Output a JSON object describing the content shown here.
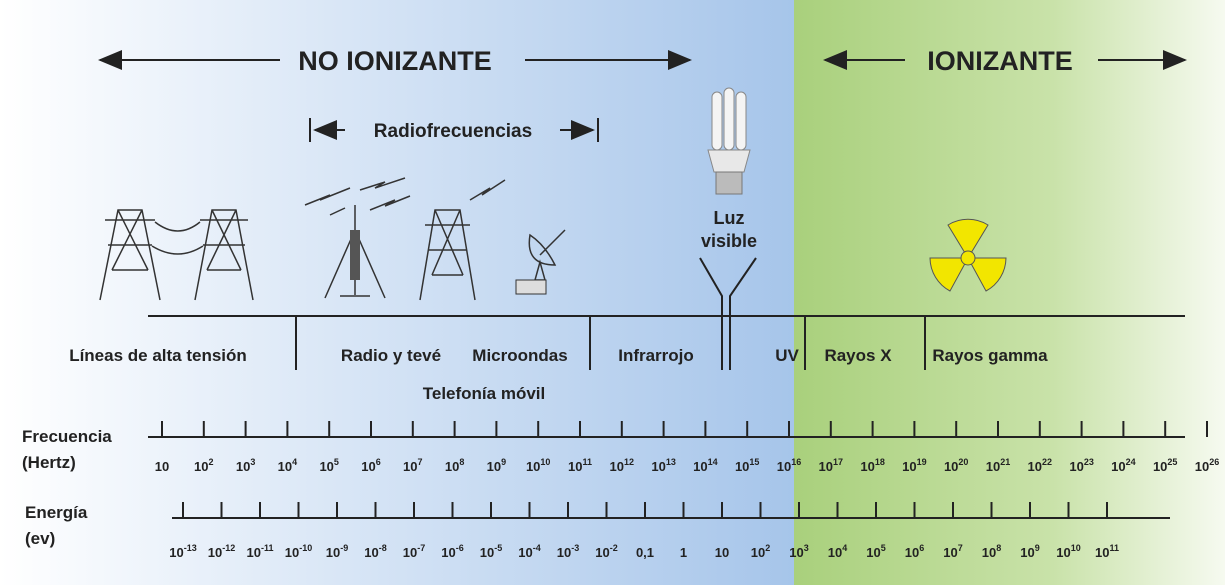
{
  "header": {
    "left": "NO IONIZANTE",
    "right": "IONIZANTE"
  },
  "radiofrequency": "Radiofrecuencias",
  "visible_light": [
    "Luz",
    "visible"
  ],
  "bands": [
    "Líneas de alta tensión",
    "Radio y tevé",
    "Microondas",
    "Telefonía móvil",
    "Infrarrojo",
    "UV",
    "Rayos X",
    "Rayos gamma"
  ],
  "frequency": {
    "label": [
      "Frecuencia",
      "(Hertz)"
    ],
    "values": [
      {
        "base": "10"
      },
      {
        "base": "10",
        "exp": "2"
      },
      {
        "base": "10",
        "exp": "3"
      },
      {
        "base": "10",
        "exp": "4"
      },
      {
        "base": "10",
        "exp": "5"
      },
      {
        "base": "10",
        "exp": "6"
      },
      {
        "base": "10",
        "exp": "7"
      },
      {
        "base": "10",
        "exp": "8"
      },
      {
        "base": "10",
        "exp": "9"
      },
      {
        "base": "10",
        "exp": "10"
      },
      {
        "base": "10",
        "exp": "11"
      },
      {
        "base": "10",
        "exp": "12"
      },
      {
        "base": "10",
        "exp": "13"
      },
      {
        "base": "10",
        "exp": "14"
      },
      {
        "base": "10",
        "exp": "15"
      },
      {
        "base": "10",
        "exp": "16"
      },
      {
        "base": "10",
        "exp": "17"
      },
      {
        "base": "10",
        "exp": "18"
      },
      {
        "base": "10",
        "exp": "19"
      },
      {
        "base": "10",
        "exp": "20"
      },
      {
        "base": "10",
        "exp": "21"
      },
      {
        "base": "10",
        "exp": "22"
      },
      {
        "base": "10",
        "exp": "23"
      },
      {
        "base": "10",
        "exp": "24"
      },
      {
        "base": "10",
        "exp": "25"
      },
      {
        "base": "10",
        "exp": "26"
      }
    ]
  },
  "energy": {
    "label": [
      "Energía",
      "(ev)"
    ],
    "values": [
      {
        "base": "10",
        "exp": "-13"
      },
      {
        "base": "10",
        "exp": "-12"
      },
      {
        "base": "10",
        "exp": "-11"
      },
      {
        "base": "10",
        "exp": "-10"
      },
      {
        "base": "10",
        "exp": "-9"
      },
      {
        "base": "10",
        "exp": "-8"
      },
      {
        "base": "10",
        "exp": "-7"
      },
      {
        "base": "10",
        "exp": "-6"
      },
      {
        "base": "10",
        "exp": "-5"
      },
      {
        "base": "10",
        "exp": "-4"
      },
      {
        "base": "10",
        "exp": "-3"
      },
      {
        "base": "10",
        "exp": "-2"
      },
      {
        "base": "0,1"
      },
      {
        "base": "1"
      },
      {
        "base": "10"
      },
      {
        "base": "10",
        "exp": "2"
      },
      {
        "base": "10",
        "exp": "3"
      },
      {
        "base": "10",
        "exp": "4"
      },
      {
        "base": "10",
        "exp": "5"
      },
      {
        "base": "10",
        "exp": "6"
      },
      {
        "base": "10",
        "exp": "7"
      },
      {
        "base": "10",
        "exp": "8"
      },
      {
        "base": "10",
        "exp": "9"
      },
      {
        "base": "10",
        "exp": "10"
      },
      {
        "base": "10",
        "exp": "11"
      }
    ]
  }
}
